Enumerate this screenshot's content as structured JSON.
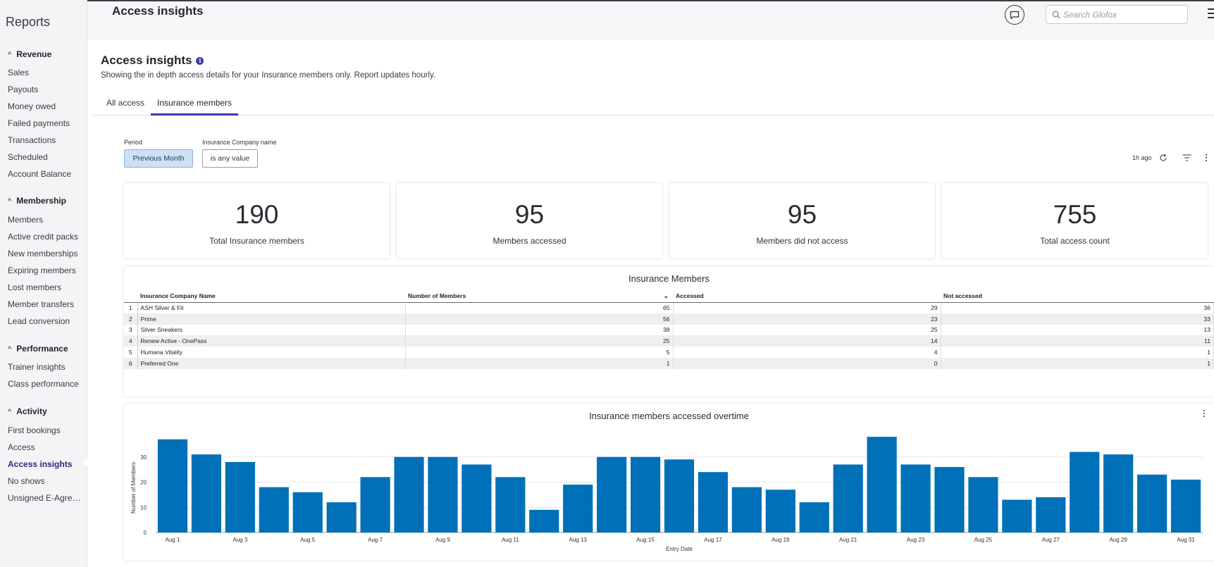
{
  "sidebar": {
    "title": "Reports",
    "sections": [
      {
        "label": "Revenue",
        "items": [
          "Sales",
          "Payouts",
          "Money owed",
          "Failed payments",
          "Transactions",
          "Scheduled",
          "Account Balance"
        ]
      },
      {
        "label": "Membership",
        "items": [
          "Members",
          "Active credit packs",
          "New memberships",
          "Expiring members",
          "Lost members",
          "Member transfers",
          "Lead conversion"
        ]
      },
      {
        "label": "Performance",
        "items": [
          "Trainer insights",
          "Class performance"
        ]
      },
      {
        "label": "Activity",
        "items": [
          "First bookings",
          "Access",
          "Access insights",
          "No shows",
          "Unsigned E-Agree..."
        ]
      }
    ],
    "active_item": "Access insights"
  },
  "header": {
    "title": "Access insights",
    "search_placeholder": "Search Glofox"
  },
  "page": {
    "title": "Access insights",
    "subtitle": "Showing the in depth access details for your Insurance members only. Report updates hourly.",
    "tabs": [
      "All access",
      "Insurance members"
    ],
    "active_tab": "Insurance members"
  },
  "filters": {
    "period_label": "Period",
    "period_value": "Previous Month",
    "company_label": "Insurance Company name",
    "company_value": "is any value",
    "updated": "1h ago"
  },
  "kpis": [
    {
      "value": "190",
      "label": "Total Insurance members"
    },
    {
      "value": "95",
      "label": "Members accessed"
    },
    {
      "value": "95",
      "label": "Members did not access"
    },
    {
      "value": "755",
      "label": "Total access count"
    }
  ],
  "table": {
    "title": "Insurance Members",
    "columns": [
      "Insurance Company Name",
      "Number of Members",
      "Accessed",
      "Not accessed"
    ],
    "rows": [
      [
        "1",
        "ASH Silver & Fit",
        "65",
        "29",
        "36"
      ],
      [
        "2",
        "Prime",
        "56",
        "23",
        "33"
      ],
      [
        "3",
        "Silver Sneakers",
        "38",
        "25",
        "13"
      ],
      [
        "4",
        "Renew Active - OnePass",
        "25",
        "14",
        "11"
      ],
      [
        "5",
        "Humana Vitality",
        "5",
        "4",
        "1"
      ],
      [
        "6",
        "Preferred One",
        "1",
        "0",
        "1"
      ]
    ]
  },
  "chart_data": {
    "type": "bar",
    "title": "Insurance members accessed overtime",
    "xlabel": "Entry Date",
    "ylabel": "Number of Members",
    "ylim": [
      0,
      40
    ],
    "yticks": [
      0,
      10,
      20,
      30
    ],
    "color": "#0070b8",
    "categories": [
      "Aug 1",
      "Aug 2",
      "Aug 3",
      "Aug 4",
      "Aug 5",
      "Aug 6",
      "Aug 7",
      "Aug 8",
      "Aug 9",
      "Aug 10",
      "Aug 11",
      "Aug 12",
      "Aug 13",
      "Aug 14",
      "Aug 15",
      "Aug 16",
      "Aug 17",
      "Aug 18",
      "Aug 19",
      "Aug 20",
      "Aug 21",
      "Aug 22",
      "Aug 23",
      "Aug 24",
      "Aug 25",
      "Aug 26",
      "Aug 27",
      "Aug 28",
      "Aug 29",
      "Aug 30",
      "Aug 31"
    ],
    "tick_labels": [
      "Aug 1",
      "Aug 3",
      "Aug 5",
      "Aug 7",
      "Aug 9",
      "Aug 11",
      "Aug 13",
      "Aug 15",
      "Aug 17",
      "Aug 19",
      "Aug 21",
      "Aug 23",
      "Aug 25",
      "Aug 27",
      "Aug 29",
      "Aug 31"
    ],
    "values": [
      37,
      31,
      28,
      18,
      16,
      12,
      22,
      30,
      30,
      27,
      22,
      9,
      19,
      30,
      30,
      29,
      24,
      18,
      17,
      12,
      27,
      38,
      27,
      26,
      22,
      13,
      14,
      32,
      31,
      23,
      21
    ],
    "grid": true
  }
}
